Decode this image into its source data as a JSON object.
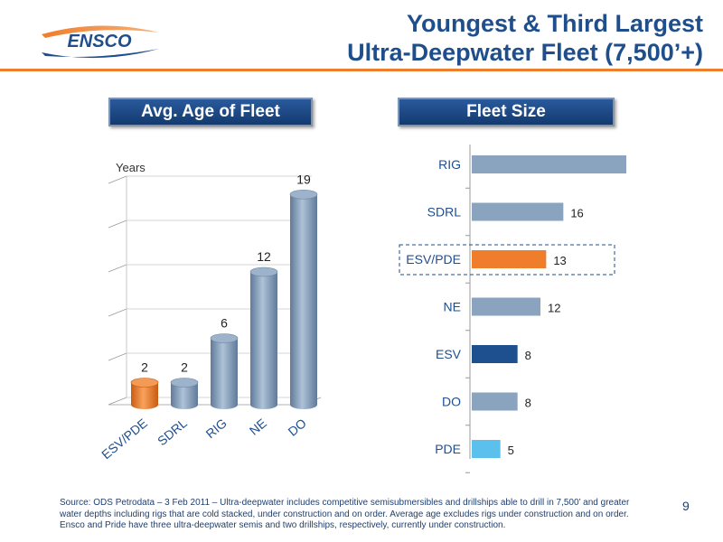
{
  "brand": {
    "logo_text": "ENSCO",
    "colors": {
      "accent_orange": "#f07d2b",
      "title_blue": "#1f4e8c",
      "bar_gray": "#8aa3bf"
    }
  },
  "header": {
    "title_line1": "Youngest & Third Largest",
    "title_line2": "Ultra-Deepwater Fleet (7,500’+)"
  },
  "panels": {
    "left_title": "Avg. Age of Fleet",
    "right_title": "Fleet Size"
  },
  "chart_data": [
    {
      "type": "bar",
      "title": "Avg. Age of Fleet",
      "ylabel": "Years",
      "categories": [
        "ESV/PDE",
        "SDRL",
        "RIG",
        "NE",
        "DO"
      ],
      "values": [
        2,
        2,
        6,
        12,
        19
      ],
      "ylim": [
        0,
        20
      ],
      "grid": true,
      "highlight": "ESV/PDE"
    },
    {
      "type": "bar",
      "orientation": "horizontal",
      "title": "Fleet Size",
      "categories": [
        "RIG",
        "SDRL",
        "ESV/PDE",
        "NE",
        "ESV",
        "DO",
        "PDE"
      ],
      "values": [
        27,
        16,
        13,
        12,
        8,
        8,
        5
      ],
      "xlim": [
        0,
        30
      ],
      "bar_colors": [
        "#8aa3bf",
        "#8aa3bf",
        "#f07d2b",
        "#8aa3bf",
        "#1e4f8f",
        "#8aa3bf",
        "#5bc0eb"
      ],
      "highlight": "ESV/PDE"
    }
  ],
  "footnote": "Source: ODS Petrodata – 3 Feb 2011 – Ultra-deepwater includes competitive semisubmersibles and drillships able to drill in 7,500’ and greater water depths including rigs that are cold stacked, under construction and on order. Average age excludes rigs under construction and on order. Ensco and Pride have three ultra-deepwater semis and two drillships, respectively, currently under construction.",
  "page_number": "9"
}
